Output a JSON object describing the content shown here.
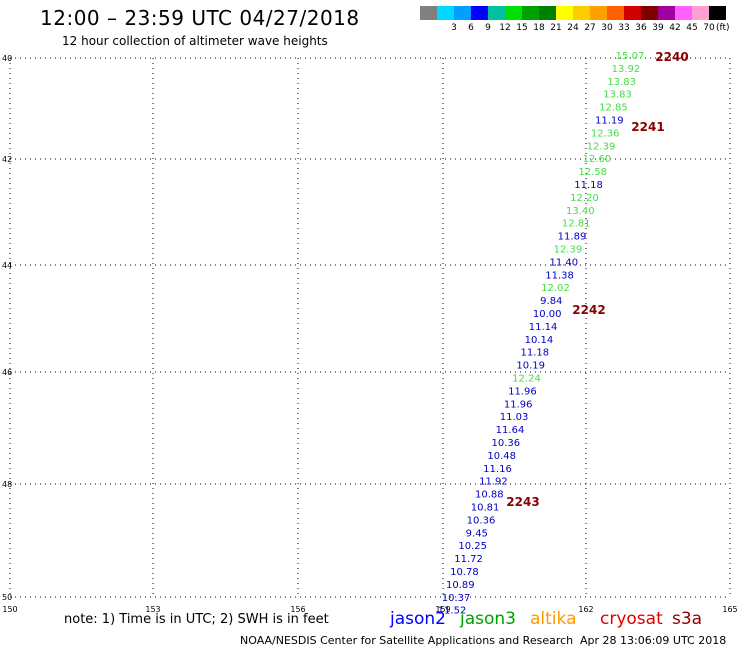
{
  "title": "12:00 – 23:59 UTC 04/27/2018",
  "subtitle": "12 hour collection of altimeter wave heights",
  "color_scale": {
    "unit": "(ft)",
    "labels": [
      "",
      "3",
      "6",
      "9",
      "12",
      "15",
      "18",
      "21",
      "24",
      "27",
      "30",
      "33",
      "36",
      "39",
      "42",
      "45",
      "70"
    ],
    "colors": [
      "#808080",
      "#00d8ff",
      "#00a0ff",
      "#0000ff",
      "#00c0a0",
      "#00e000",
      "#00a000",
      "#008000",
      "#ffff00",
      "#ffcc00",
      "#ffa000",
      "#ff6000",
      "#d00000",
      "#800000",
      "#a000a0",
      "#ff60ff",
      "#ffa0d0",
      "#000000"
    ]
  },
  "map": {
    "lat_labels": [
      "40",
      "42",
      "44",
      "46",
      "48",
      "50"
    ],
    "lon_labels": [
      "150",
      "153",
      "156",
      "159",
      "162",
      "165"
    ]
  },
  "track": {
    "points": [
      {
        "v": "15.07",
        "s": "j3"
      },
      {
        "v": "13.92",
        "s": "j3"
      },
      {
        "v": "13.83",
        "s": "j3"
      },
      {
        "v": "13.83",
        "s": "j3"
      },
      {
        "v": "12.85",
        "s": "j3"
      },
      {
        "v": "11.19",
        "s": "j2"
      },
      {
        "v": "12.36",
        "s": "j3"
      },
      {
        "v": "12.39",
        "s": "j3"
      },
      {
        "v": "12.60",
        "s": "j3"
      },
      {
        "v": "12.58",
        "s": "j3"
      },
      {
        "v": "11.18",
        "s": "j2"
      },
      {
        "v": "12.20",
        "s": "j3"
      },
      {
        "v": "13.40",
        "s": "j3"
      },
      {
        "v": "12.81",
        "s": "j3"
      },
      {
        "v": "11.89",
        "s": "j2"
      },
      {
        "v": "12.39",
        "s": "j3"
      },
      {
        "v": "11.40",
        "s": "j2"
      },
      {
        "v": "11.38",
        "s": "j2"
      },
      {
        "v": "12.02",
        "s": "j3"
      },
      {
        "v": "9.84",
        "s": "j2"
      },
      {
        "v": "10.00",
        "s": "j2"
      },
      {
        "v": "11.14",
        "s": "j2"
      },
      {
        "v": "10.14",
        "s": "j2"
      },
      {
        "v": "11.18",
        "s": "j2"
      },
      {
        "v": "10.19",
        "s": "j2"
      },
      {
        "v": "12.24",
        "s": "j3"
      },
      {
        "v": "11.96",
        "s": "j2"
      },
      {
        "v": "11.96",
        "s": "j2"
      },
      {
        "v": "11.03",
        "s": "j2"
      },
      {
        "v": "11.64",
        "s": "j2"
      },
      {
        "v": "10.36",
        "s": "j2"
      },
      {
        "v": "10.48",
        "s": "j2"
      },
      {
        "v": "11.16",
        "s": "j2"
      },
      {
        "v": "11.92",
        "s": "j2"
      },
      {
        "v": "10.88",
        "s": "j2"
      },
      {
        "v": "10.81",
        "s": "j2"
      },
      {
        "v": "10.36",
        "s": "j2"
      },
      {
        "v": "9.45",
        "s": "j2"
      },
      {
        "v": "10.25",
        "s": "j2"
      },
      {
        "v": "11.72",
        "s": "j2"
      },
      {
        "v": "10.78",
        "s": "j2"
      },
      {
        "v": "10.89",
        "s": "j2"
      },
      {
        "v": "10.37",
        "s": "j2"
      },
      {
        "v": "11.52",
        "s": "j2"
      }
    ],
    "times": [
      "2240",
      "2241",
      "2242",
      "2243"
    ]
  },
  "series_colors": {
    "j2": "#0000c8",
    "j3": "#44dd44",
    "time": "#8b0000"
  },
  "note": "note: 1) Time is in UTC; 2) SWH is in feet",
  "legend": {
    "jason2": "jason2",
    "jason3": "jason3",
    "altika": "altika",
    "cryosat": "cryosat",
    "s3a": "s3a",
    "colors": {
      "jason2": "#0000ff",
      "jason3": "#00a000",
      "altika": "#ff9900",
      "cryosat": "#e00000",
      "s3a": "#8b0000"
    }
  },
  "credit": "NOAA/NESDIS Center for Satellite Applications and Research",
  "stamp": "Apr 28 13:06:09 UTC 2018"
}
